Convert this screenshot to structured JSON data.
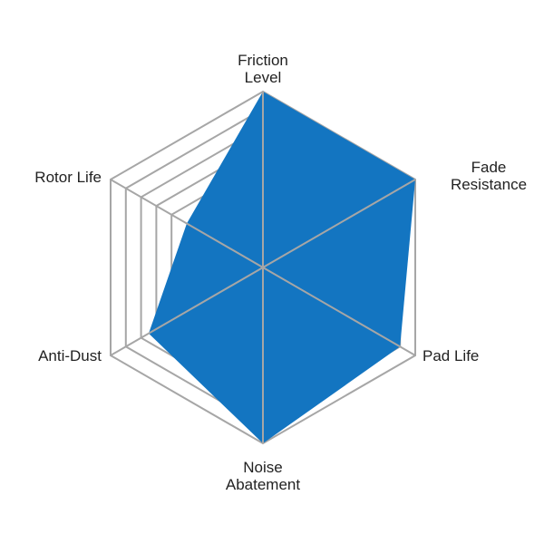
{
  "chart_data": {
    "type": "radar",
    "axes": [
      "Friction Level",
      "Fade Resistance",
      "Pad Life",
      "Noise Abatement",
      "Anti-Dust",
      "Rotor Life"
    ],
    "axis_label_lines": [
      [
        "Friction",
        "Level"
      ],
      [
        "Fade",
        "Resistance"
      ],
      [
        "Pad Life"
      ],
      [
        "Noise",
        "Abatement"
      ],
      [
        "Anti-Dust"
      ],
      [
        "Rotor Life"
      ]
    ],
    "values": [
      10,
      10,
      9,
      10,
      7.5,
      5
    ],
    "range": [
      0,
      10
    ],
    "rings": [
      6,
      7,
      8,
      9,
      10
    ],
    "fill_color": "#1375c1",
    "grid_color": "#a6a6a6",
    "grid": true
  }
}
